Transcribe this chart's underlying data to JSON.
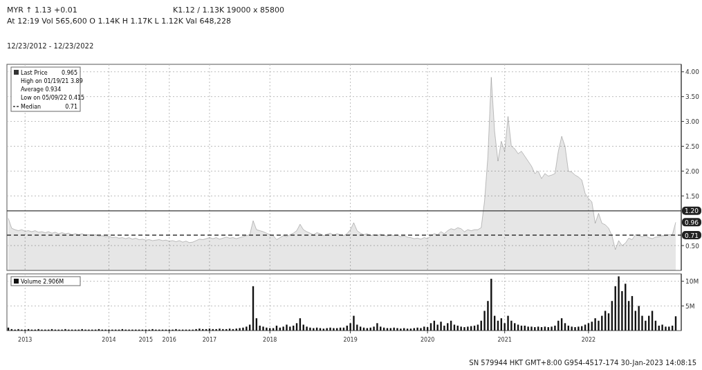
{
  "chart_data": [
    {
      "type": "area",
      "categories": [
        null,
        null,
        null,
        null,
        null,
        "2013",
        null,
        null,
        null,
        null,
        null,
        null,
        null,
        null,
        null,
        null,
        null,
        null,
        null,
        null,
        null,
        null,
        null,
        null,
        null,
        null,
        null,
        null,
        null,
        null,
        "2014",
        null,
        null,
        null,
        null,
        null,
        null,
        null,
        null,
        null,
        null,
        "2015",
        null,
        null,
        null,
        null,
        null,
        null,
        "2016",
        null,
        null,
        null,
        null,
        null,
        null,
        null,
        null,
        null,
        null,
        null,
        "2017",
        null,
        null,
        null,
        null,
        null,
        null,
        null,
        null,
        null,
        null,
        null,
        null,
        null,
        null,
        null,
        null,
        null,
        "2018",
        null,
        null,
        null,
        null,
        null,
        null,
        null,
        null,
        null,
        null,
        null,
        null,
        null,
        null,
        null,
        null,
        null,
        null,
        null,
        null,
        null,
        null,
        null,
        "2019",
        null,
        null,
        null,
        null,
        null,
        null,
        null,
        null,
        null,
        null,
        null,
        null,
        null,
        null,
        null,
        null,
        null,
        null,
        null,
        null,
        null,
        null,
        "2020",
        null,
        null,
        null,
        null,
        null,
        null,
        null,
        null,
        null,
        null,
        null,
        null,
        null,
        null,
        null,
        null,
        null,
        null,
        null,
        null,
        null,
        null,
        "2021",
        null,
        null,
        null,
        null,
        null,
        null,
        null,
        null,
        null,
        null,
        null,
        null,
        null,
        null,
        null,
        null,
        null,
        null,
        null,
        null,
        null,
        null,
        null,
        null,
        "2022",
        null,
        null,
        null,
        null,
        null,
        null,
        null,
        null,
        null,
        null,
        null,
        null,
        null,
        null,
        null,
        null,
        null,
        null,
        null,
        null,
        null,
        null,
        null,
        null,
        null,
        null
      ],
      "series": [
        {
          "name": "Last Price",
          "color": "#333333",
          "values": [
            1.05,
            0.85,
            0.82,
            0.8,
            0.82,
            0.79,
            0.8,
            0.78,
            0.8,
            0.77,
            0.78,
            0.76,
            0.78,
            0.75,
            0.77,
            0.74,
            0.76,
            0.74,
            0.75,
            0.72,
            0.74,
            0.72,
            0.74,
            0.71,
            0.72,
            0.7,
            0.72,
            0.69,
            0.7,
            0.68,
            0.69,
            0.66,
            0.67,
            0.65,
            0.66,
            0.64,
            0.66,
            0.63,
            0.65,
            0.62,
            0.63,
            0.61,
            0.62,
            0.6,
            0.61,
            0.62,
            0.6,
            0.61,
            0.59,
            0.6,
            0.58,
            0.6,
            0.57,
            0.59,
            0.56,
            0.57,
            0.6,
            0.63,
            0.62,
            0.64,
            0.66,
            0.64,
            0.66,
            0.63,
            0.65,
            0.67,
            0.65,
            0.66,
            0.64,
            0.66,
            0.68,
            0.7,
            0.72,
            1.0,
            0.82,
            0.8,
            0.78,
            0.75,
            0.72,
            0.7,
            0.62,
            0.66,
            0.7,
            0.68,
            0.72,
            0.75,
            0.8,
            0.93,
            0.82,
            0.78,
            0.75,
            0.72,
            0.76,
            0.74,
            0.7,
            0.73,
            0.75,
            0.71,
            0.74,
            0.72,
            0.7,
            0.74,
            0.82,
            0.96,
            0.8,
            0.75,
            0.72,
            0.74,
            0.7,
            0.72,
            0.7,
            0.73,
            0.71,
            0.69,
            0.72,
            0.7,
            0.71,
            0.68,
            0.7,
            0.67,
            0.66,
            0.64,
            0.65,
            0.63,
            0.66,
            0.64,
            0.7,
            0.74,
            0.72,
            0.78,
            0.74,
            0.8,
            0.84,
            0.82,
            0.86,
            0.84,
            0.78,
            0.82,
            0.8,
            0.82,
            0.82,
            0.86,
            1.4,
            2.3,
            3.89,
            2.8,
            2.2,
            2.6,
            2.4,
            3.1,
            2.5,
            2.45,
            2.35,
            2.4,
            2.3,
            2.2,
            2.1,
            1.95,
            2.0,
            1.85,
            1.95,
            1.9,
            1.92,
            1.95,
            2.4,
            2.7,
            2.5,
            2.0,
            1.98,
            1.92,
            1.88,
            1.82,
            1.55,
            1.45,
            1.38,
            0.95,
            1.15,
            0.95,
            0.92,
            0.85,
            0.7,
            0.42,
            0.6,
            0.5,
            0.55,
            0.65,
            0.62,
            0.72,
            0.7,
            0.68,
            0.7,
            0.66,
            0.64,
            0.67,
            0.68,
            0.7,
            0.7,
            0.72,
            0.72,
            0.97
          ]
        }
      ],
      "ylim": [
        0,
        4.15
      ],
      "yticks": [
        {
          "value": 0.5,
          "label": "0.50"
        },
        {
          "value": 1.5,
          "label": "1.50"
        },
        {
          "value": 2,
          "label": "2.00"
        },
        {
          "value": 2.5,
          "label": "2.50"
        },
        {
          "value": 3,
          "label": "3.00"
        },
        {
          "value": 3.5,
          "label": "3.50"
        },
        {
          "value": 4,
          "label": "4.00"
        }
      ],
      "ref_lines": [
        {
          "axis": "y",
          "value": 0.71,
          "label": "0.71",
          "line_style": "dashed"
        },
        {
          "axis": "y",
          "value": 1.2,
          "label": "1.20"
        }
      ],
      "annotations": [
        "MYR ↑ 1.13  +0.01",
        "K1.12 / 1.13K   19000 x 85800",
        "At 12:19   Vol 565,600   O 1.14K   H 1.17K   L 1.12K   Val 648,228",
        "12/23/2012 - 12/23/2022",
        "0.965",
        "High on 01/19/21 3.89",
        "Average 0.934",
        "Low on 05/09/22 0.415",
        "0.96",
        "Median"
      ],
      "legend": "top left",
      "grid": true,
      "tick_labels": "y"
    },
    {
      "type": "bar",
      "categories": [
        null,
        null,
        null,
        null,
        null,
        "2013",
        null,
        null,
        null,
        null,
        null,
        null,
        null,
        null,
        null,
        null,
        null,
        null,
        null,
        null,
        null,
        null,
        null,
        null,
        null,
        null,
        null,
        null,
        null,
        null,
        "2014",
        null,
        null,
        null,
        null,
        null,
        null,
        null,
        null,
        null,
        null,
        "2015",
        null,
        null,
        null,
        null,
        null,
        null,
        "2016",
        null,
        null,
        null,
        null,
        null,
        null,
        null,
        null,
        null,
        null,
        null,
        "2017",
        null,
        null,
        null,
        null,
        null,
        null,
        null,
        null,
        null,
        null,
        null,
        null,
        null,
        null,
        null,
        null,
        null,
        "2018",
        null,
        null,
        null,
        null,
        null,
        null,
        null,
        null,
        null,
        null,
        null,
        null,
        null,
        null,
        null,
        null,
        null,
        null,
        null,
        null,
        null,
        null,
        null,
        "2019",
        null,
        null,
        null,
        null,
        null,
        null,
        null,
        null,
        null,
        null,
        null,
        null,
        null,
        null,
        null,
        null,
        null,
        null,
        null,
        null,
        null,
        null,
        "2020",
        null,
        null,
        null,
        null,
        null,
        null,
        null,
        null,
        null,
        null,
        null,
        null,
        null,
        null,
        null,
        null,
        null,
        null,
        null,
        null,
        null,
        null,
        "2021",
        null,
        null,
        null,
        null,
        null,
        null,
        null,
        null,
        null,
        null,
        null,
        null,
        null,
        null,
        null,
        null,
        null,
        null,
        null,
        null,
        null,
        null,
        null,
        null,
        "2022",
        null,
        null,
        null,
        null,
        null,
        null,
        null,
        null,
        null,
        null,
        null,
        null,
        null,
        null,
        null,
        null,
        null,
        null,
        null,
        null,
        null,
        null,
        null,
        null,
        null,
        null
      ],
      "series": [
        {
          "name": "Volume",
          "color": "#111111",
          "values": [
            0.6,
            0.3,
            0.2,
            0.3,
            0.2,
            0.2,
            0.3,
            0.2,
            0.2,
            0.3,
            0.2,
            0.2,
            0.2,
            0.3,
            0.2,
            0.2,
            0.2,
            0.3,
            0.2,
            0.2,
            0.2,
            0.2,
            0.3,
            0.2,
            0.2,
            0.2,
            0.2,
            0.3,
            0.2,
            0.2,
            0.2,
            0.2,
            0.2,
            0.2,
            0.3,
            0.2,
            0.2,
            0.2,
            0.2,
            0.2,
            0.2,
            0.2,
            0.2,
            0.3,
            0.2,
            0.2,
            0.2,
            0.2,
            0.2,
            0.2,
            0.3,
            0.2,
            0.2,
            0.2,
            0.2,
            0.2,
            0.3,
            0.4,
            0.3,
            0.3,
            0.4,
            0.3,
            0.3,
            0.4,
            0.3,
            0.3,
            0.4,
            0.3,
            0.4,
            0.5,
            0.6,
            0.8,
            1.2,
            9.0,
            2.5,
            1.0,
            0.8,
            0.6,
            0.5,
            0.5,
            1.0,
            0.6,
            0.8,
            1.2,
            0.8,
            1.0,
            1.5,
            2.5,
            1.2,
            0.8,
            0.6,
            0.5,
            0.6,
            0.5,
            0.4,
            0.5,
            0.6,
            0.5,
            0.5,
            0.6,
            0.6,
            1.0,
            1.5,
            3.0,
            1.2,
            0.8,
            0.6,
            0.5,
            0.6,
            0.8,
            1.5,
            0.8,
            0.6,
            0.5,
            0.5,
            0.6,
            0.5,
            0.4,
            0.5,
            0.4,
            0.4,
            0.5,
            0.6,
            0.5,
            0.8,
            0.7,
            1.5,
            2.0,
            1.2,
            1.8,
            1.0,
            1.5,
            2.0,
            1.2,
            1.0,
            0.8,
            0.7,
            0.8,
            0.9,
            1.0,
            1.2,
            2.0,
            4.0,
            6.0,
            10.5,
            3.0,
            2.0,
            2.5,
            1.5,
            3.0,
            2.0,
            1.5,
            1.2,
            1.0,
            1.0,
            0.8,
            0.8,
            0.7,
            0.8,
            0.7,
            0.8,
            0.7,
            0.8,
            1.0,
            2.0,
            2.5,
            1.5,
            1.0,
            0.8,
            0.7,
            0.8,
            0.9,
            1.2,
            1.5,
            1.8,
            2.5,
            2.0,
            3.0,
            4.0,
            3.5,
            6.0,
            9.0,
            11.0,
            8.0,
            9.5,
            6.0,
            7.0,
            4.0,
            5.0,
            3.0,
            2.0,
            3.0,
            4.0,
            2.0,
            1.0,
            1.2,
            0.8,
            0.8,
            1.0,
            2.9
          ]
        }
      ],
      "ylim": [
        0,
        11.5
      ],
      "yticks": [
        {
          "value": 5,
          "label": "5M"
        },
        {
          "value": 10,
          "label": "10M"
        }
      ],
      "annotations": [
        "2.906M",
        "SN 579944 HKT  GMT+8:00 G954-4517-174 30-Jan-2023 14:08:15"
      ],
      "legend": "top left",
      "grid": true
    }
  ]
}
